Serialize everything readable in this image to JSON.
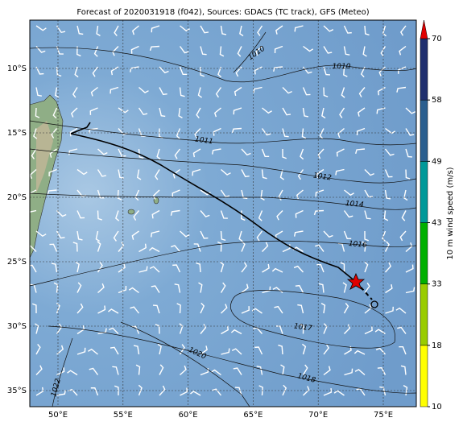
{
  "map": {
    "title": "Forecast of 2020031918 (f042), Sources: GDACS (TC track), GFS (Meteo)",
    "lon_labels": [
      "50°E",
      "55°E",
      "60°E",
      "65°E",
      "70°E",
      "75°E"
    ],
    "lat_labels": [
      "10°S",
      "15°S",
      "20°S",
      "25°S",
      "30°S",
      "35°S"
    ],
    "contour_labels": [
      "1010",
      "1010",
      "1011",
      "1012",
      "1014",
      "1016",
      "1017",
      "1018",
      "1020",
      "1022"
    ],
    "colorbar": {
      "label": "10 m wind speed (m/s)",
      "ticks": [
        10,
        18,
        33,
        43,
        49,
        58,
        70
      ],
      "colors": [
        "#ffff00",
        "#99cc00",
        "#00b000",
        "#009999",
        "#2b5f8f",
        "#1f2f6e"
      ]
    }
  }
}
